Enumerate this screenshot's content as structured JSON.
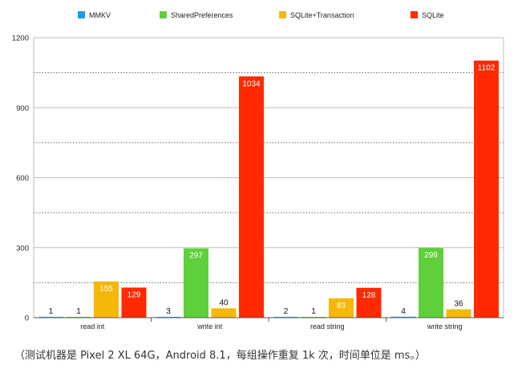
{
  "chart_data": {
    "type": "bar",
    "categories": [
      "read int",
      "write int",
      "read string",
      "write string"
    ],
    "series": [
      {
        "name": "MMKV",
        "values": [
          1,
          3,
          2,
          4
        ],
        "color": "#1e9bf0"
      },
      {
        "name": "SharedPreferences",
        "values": [
          1,
          297,
          1,
          299
        ],
        "color": "#5fd03a"
      },
      {
        "name": "SQLite+Transaction",
        "values": [
          155,
          40,
          83,
          36
        ],
        "color": "#f5b70a"
      },
      {
        "name": "SQLite",
        "values": [
          129,
          1034,
          128,
          1102
        ],
        "color": "#ff2a00"
      }
    ],
    "ylim": [
      0,
      1200
    ],
    "yticks": [
      0,
      300,
      600,
      900,
      1200
    ],
    "grid": true,
    "legend_position": "top"
  },
  "caption": "（测试机器是 Pixel 2 XL 64G，Android 8.1，每组操作重复 1k 次，时间单位是 ms。）"
}
